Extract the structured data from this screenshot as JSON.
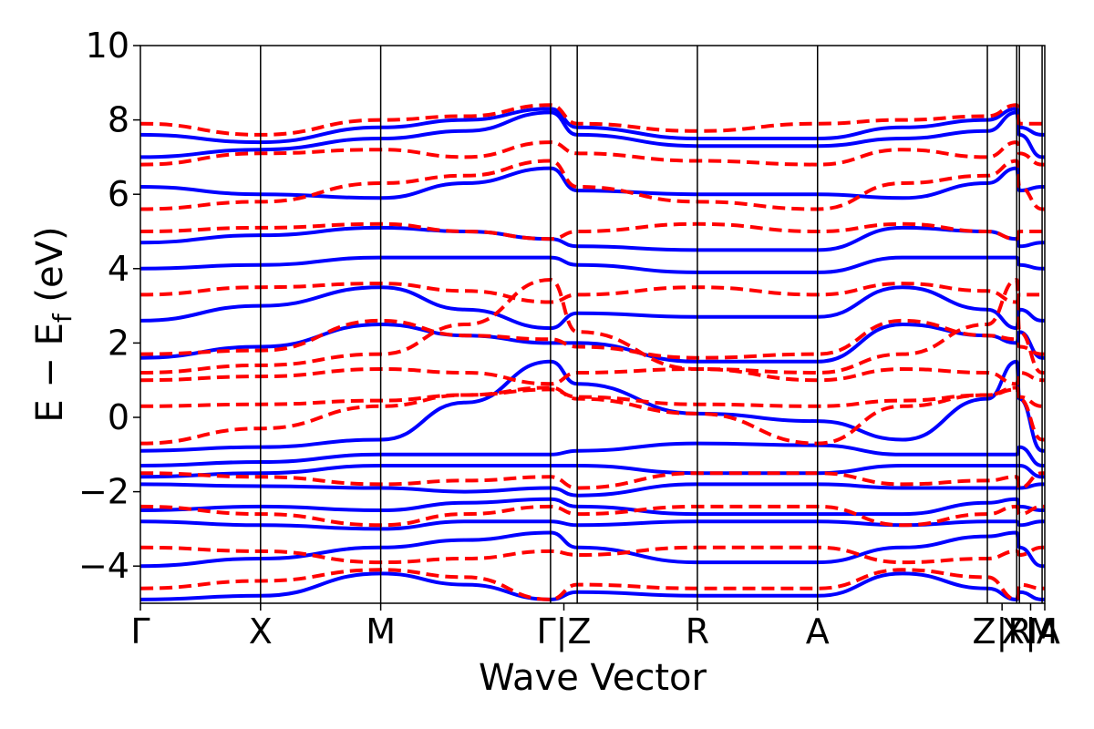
{
  "chart_data": {
    "type": "line",
    "title": "",
    "xlabel": "Wave Vector",
    "ylabel_parts": {
      "main": "E − E",
      "subscript": "f",
      "unit": " (eV)"
    },
    "ylim": [
      -5,
      10
    ],
    "yticks": [
      -4,
      -2,
      0,
      2,
      4,
      6,
      8,
      10
    ],
    "ytick_labels": [
      "−4",
      "−2",
      "0",
      "2",
      "4",
      "6",
      "8",
      "10"
    ],
    "xlim": [
      0,
      3.387
    ],
    "kpoints": [
      {
        "label": "Γ",
        "x": 0.0
      },
      {
        "label": "X",
        "x": 0.45
      },
      {
        "label": "M",
        "x": 0.9
      },
      {
        "label": "Γ",
        "x": 1.536
      },
      {
        "label": "Z",
        "x": 1.636
      },
      {
        "label": "R",
        "x": 2.086
      },
      {
        "label": "A",
        "x": 2.536
      },
      {
        "label": "Z",
        "x": 3.172
      },
      {
        "label": "R",
        "x": 3.282
      },
      {
        "label": "X",
        "x": 3.292
      },
      {
        "label": "A",
        "x": 3.377
      },
      {
        "label": "M",
        "x": 3.387
      }
    ],
    "xtick_labels": [
      "Γ",
      "X",
      "M",
      "Γ|Z",
      "R",
      "A",
      "Z|R",
      "X|A",
      "M"
    ],
    "xtick_positions": [
      0.0,
      0.45,
      0.9,
      1.586,
      2.086,
      2.536,
      3.227,
      3.334,
      3.387
    ],
    "grid": false,
    "legend": "none",
    "series": [
      {
        "color": "#0000ff",
        "style": "solid",
        "bands": [
          [
            -0.9,
            -0.8,
            -0.6,
            0.4,
            1.5,
            0.9,
            0.1,
            -0.1,
            -0.6,
            0.5,
            1.5,
            0.5,
            -0.9,
            -0.9,
            -0.6
          ],
          [
            -1.3,
            -1.2,
            -1.0,
            -1.0,
            -1.0,
            -0.9,
            -0.7,
            -0.75,
            -1.0,
            -1.0,
            -1.0,
            -0.8,
            -1.3,
            -1.3,
            -1.0
          ],
          [
            -1.6,
            -1.5,
            -1.3,
            -1.3,
            -1.3,
            -1.3,
            -1.5,
            -1.5,
            -1.3,
            -1.3,
            -1.3,
            -1.3,
            -1.6,
            -1.6,
            -1.3
          ],
          [
            -1.8,
            -1.85,
            -1.9,
            -2.0,
            -1.9,
            -2.1,
            -1.8,
            -1.8,
            -1.9,
            -1.9,
            -1.9,
            -1.9,
            -1.8,
            -1.8,
            -1.9
          ],
          [
            -2.5,
            -2.4,
            -2.5,
            -2.3,
            -2.2,
            -2.4,
            -2.6,
            -2.6,
            -2.6,
            -2.3,
            -2.2,
            -2.4,
            -2.5,
            -2.5,
            -2.4
          ],
          [
            -2.8,
            -2.9,
            -3.0,
            -2.8,
            -2.8,
            -2.9,
            -2.8,
            -2.8,
            -2.9,
            -2.8,
            -2.8,
            -2.9,
            -2.8,
            -2.8,
            -3.0
          ],
          [
            -4.0,
            -3.8,
            -3.5,
            -3.3,
            -3.1,
            -3.5,
            -3.9,
            -3.9,
            -3.5,
            -3.2,
            -3.1,
            -3.5,
            -4.0,
            -4.0,
            -3.5
          ],
          [
            -4.9,
            -4.8,
            -4.2,
            -4.5,
            -4.9,
            -4.7,
            -4.8,
            -4.8,
            -4.2,
            -4.6,
            -4.9,
            -4.7,
            -4.9,
            -4.9,
            -4.2
          ],
          [
            1.6,
            1.9,
            2.5,
            2.2,
            2.0,
            2.0,
            1.5,
            1.5,
            2.5,
            2.2,
            2.0,
            2.3,
            1.6,
            1.6,
            2.5
          ],
          [
            2.6,
            3.0,
            3.5,
            2.9,
            2.4,
            2.8,
            2.7,
            2.7,
            3.5,
            2.9,
            2.4,
            2.9,
            2.6,
            2.6,
            3.5
          ],
          [
            4.0,
            4.1,
            4.3,
            4.3,
            4.3,
            4.1,
            3.9,
            3.9,
            4.3,
            4.3,
            4.3,
            4.1,
            4.0,
            4.0,
            4.3
          ],
          [
            4.7,
            4.9,
            5.1,
            5.0,
            4.8,
            4.6,
            4.5,
            4.5,
            5.1,
            5.0,
            4.8,
            4.6,
            4.7,
            4.7,
            5.1
          ],
          [
            6.2,
            6.0,
            5.9,
            6.3,
            6.7,
            6.1,
            6.0,
            6.0,
            5.9,
            6.3,
            6.7,
            6.1,
            6.2,
            6.2,
            5.9
          ],
          [
            7.0,
            7.2,
            7.5,
            7.7,
            8.2,
            7.6,
            7.3,
            7.3,
            7.5,
            7.7,
            8.2,
            7.6,
            7.0,
            7.0,
            7.5
          ],
          [
            7.6,
            7.4,
            7.8,
            8.0,
            8.3,
            7.8,
            7.5,
            7.5,
            7.8,
            8.0,
            8.3,
            7.8,
            7.6,
            7.6,
            7.8
          ]
        ]
      },
      {
        "color": "#ff0000",
        "style": "dashed",
        "bands": [
          [
            -0.7,
            -0.3,
            0.3,
            0.6,
            0.8,
            0.5,
            0.1,
            -0.7,
            0.3,
            0.6,
            0.8,
            0.5,
            -0.6,
            -0.6,
            0.3
          ],
          [
            0.3,
            0.35,
            0.45,
            0.6,
            0.75,
            0.55,
            0.35,
            0.3,
            0.45,
            0.6,
            0.75,
            0.55,
            0.3,
            0.3,
            0.45
          ],
          [
            1.0,
            1.1,
            1.3,
            1.2,
            0.9,
            1.2,
            1.3,
            1.0,
            1.3,
            1.2,
            0.9,
            1.2,
            1.0,
            1.0,
            1.3
          ],
          [
            1.2,
            1.4,
            1.7,
            2.5,
            3.7,
            2.3,
            1.3,
            1.2,
            1.7,
            2.5,
            3.7,
            2.3,
            1.2,
            1.2,
            1.7
          ],
          [
            1.7,
            1.8,
            2.6,
            2.2,
            2.1,
            1.9,
            1.6,
            1.7,
            2.6,
            2.2,
            2.1,
            1.9,
            1.7,
            1.7,
            2.6
          ],
          [
            3.3,
            3.5,
            3.6,
            3.4,
            3.1,
            3.3,
            3.5,
            3.3,
            3.6,
            3.4,
            3.1,
            3.3,
            3.3,
            3.3,
            3.6
          ],
          [
            -1.5,
            -1.6,
            -1.8,
            -1.7,
            -1.6,
            -1.9,
            -1.5,
            -1.5,
            -1.8,
            -1.7,
            -1.6,
            -1.9,
            -1.5,
            -1.5,
            -1.8
          ],
          [
            -2.4,
            -2.6,
            -2.9,
            -2.6,
            -2.4,
            -2.6,
            -2.4,
            -2.4,
            -2.9,
            -2.6,
            -2.4,
            -2.6,
            -2.4,
            -2.4,
            -2.9
          ],
          [
            -3.5,
            -3.6,
            -3.9,
            -3.8,
            -3.6,
            -3.7,
            -3.5,
            -3.5,
            -3.9,
            -3.8,
            -3.6,
            -3.7,
            -3.5,
            -3.5,
            -3.9
          ],
          [
            -4.6,
            -4.4,
            -4.1,
            -4.3,
            -4.9,
            -4.5,
            -4.6,
            -4.6,
            -4.1,
            -4.3,
            -4.9,
            -4.5,
            -4.6,
            -4.6,
            -4.1
          ],
          [
            5.0,
            5.1,
            5.2,
            5.0,
            4.8,
            5.0,
            5.2,
            5.0,
            5.2,
            5.0,
            4.8,
            5.0,
            5.0,
            5.0,
            5.2
          ],
          [
            5.6,
            5.8,
            6.3,
            6.5,
            6.9,
            6.2,
            5.8,
            5.6,
            6.3,
            6.5,
            6.9,
            6.2,
            5.6,
            5.6,
            6.3
          ],
          [
            6.8,
            7.1,
            7.2,
            7.0,
            7.4,
            7.1,
            6.9,
            6.8,
            7.2,
            7.0,
            7.4,
            7.1,
            6.8,
            6.8,
            7.2
          ],
          [
            7.9,
            7.6,
            8.0,
            8.1,
            8.4,
            7.9,
            7.7,
            7.9,
            8.0,
            8.1,
            8.4,
            7.9,
            7.9,
            7.9,
            8.0
          ]
        ]
      }
    ]
  }
}
